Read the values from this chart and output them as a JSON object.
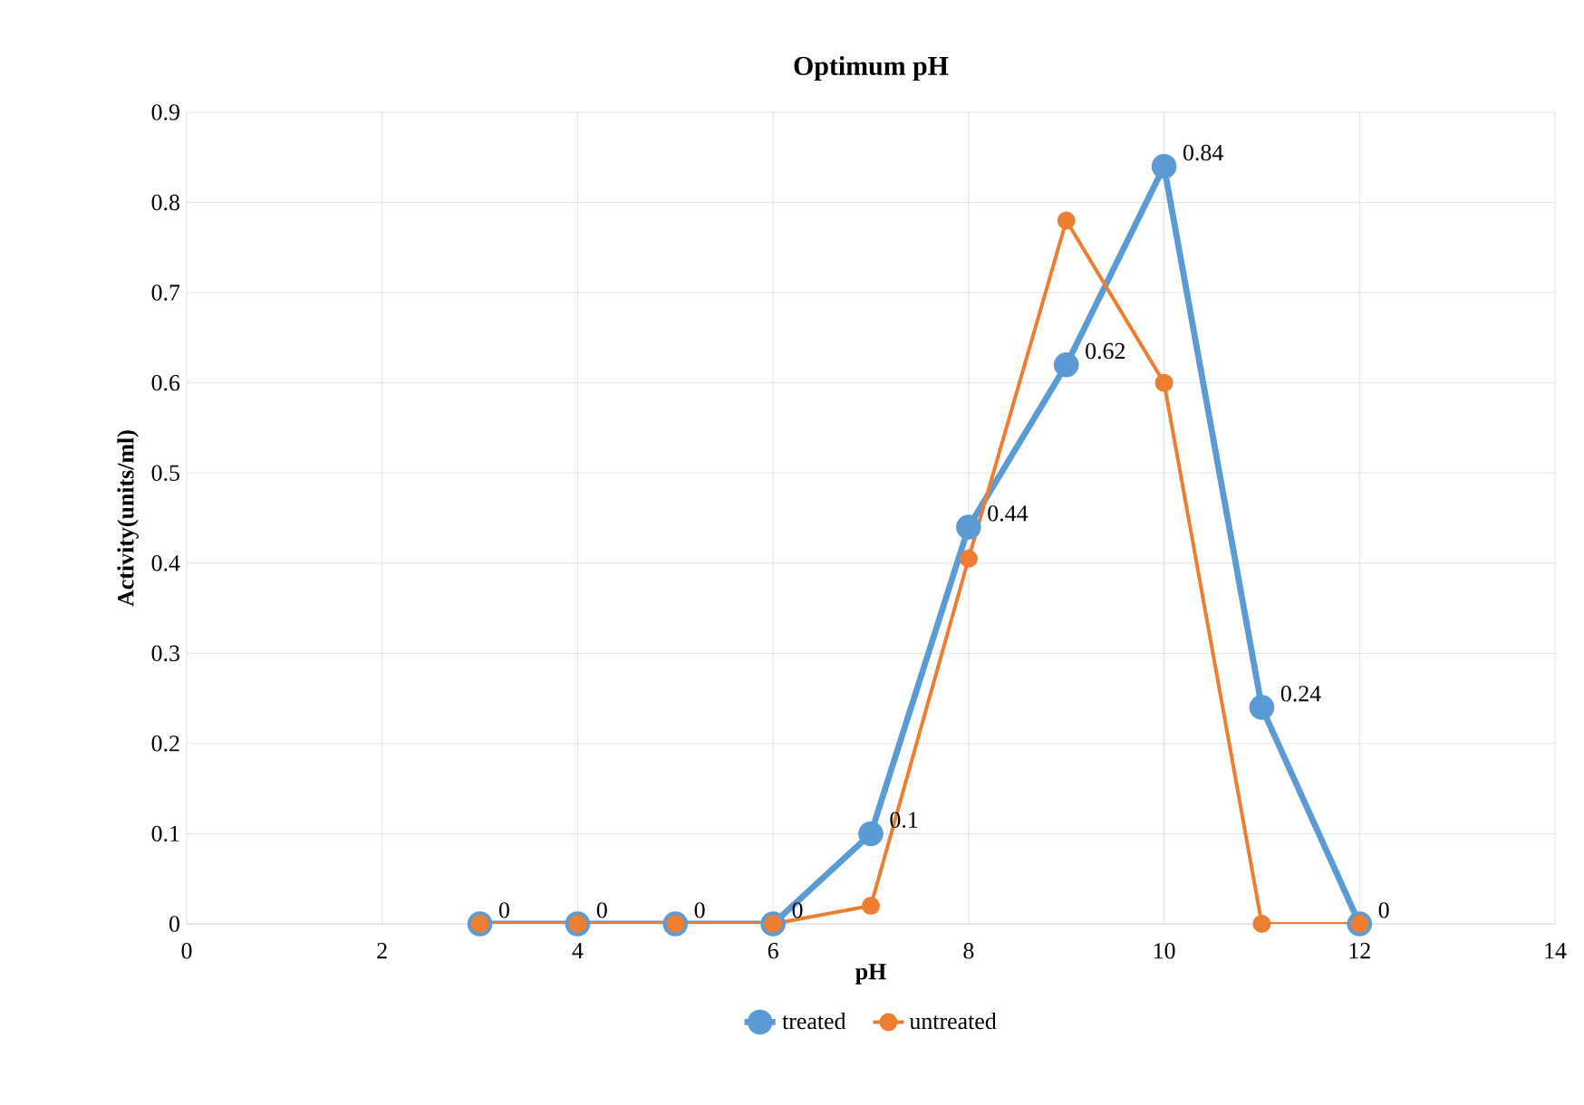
{
  "chart_data": {
    "type": "line",
    "title": "Optimum pH",
    "xlabel": "pH",
    "ylabel": "Activity(units/ml)",
    "x": [
      3,
      4,
      5,
      6,
      7,
      8,
      9,
      10,
      11,
      12
    ],
    "series": [
      {
        "name": "treated",
        "color": "#5b9bd5",
        "values": [
          0,
          0,
          0,
          0,
          0.1,
          0.44,
          0.62,
          0.84,
          0.24,
          0
        ],
        "value_labels": [
          "0",
          "0",
          "0",
          "0",
          "0.1",
          "0.44",
          "0.62",
          "0.84",
          "0.24",
          "0"
        ]
      },
      {
        "name": "untreated",
        "color": "#ed7d31",
        "values": [
          0,
          0,
          0,
          0,
          0.02,
          0.405,
          0.78,
          0.6,
          0,
          0
        ]
      }
    ],
    "xlim": [
      0,
      14
    ],
    "xticks": [
      0,
      2,
      4,
      6,
      8,
      10,
      12,
      14
    ],
    "ylim": [
      0,
      0.9
    ],
    "yticks": [
      0,
      0.1,
      0.2,
      0.3,
      0.4,
      0.5,
      0.6,
      0.7,
      0.8,
      0.9
    ],
    "grid": true,
    "legend": "bottom",
    "marker": "circle",
    "line_style": "solid"
  }
}
